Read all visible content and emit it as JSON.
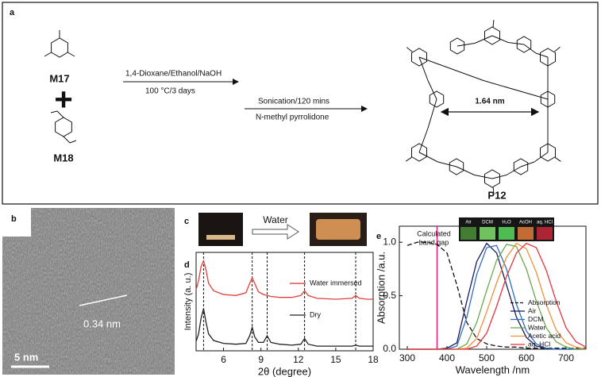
{
  "panel_labels": [
    "a",
    "b",
    "c",
    "d",
    "e"
  ],
  "scheme": {
    "monomer_1": "M17",
    "monomer_2": "M18",
    "plus": "+",
    "step_1": {
      "reagents": "1,4-Dioxane/Ethanol/NaOH",
      "conditions": "100 °C/3 days"
    },
    "step_2": {
      "reagents": "Sonication/120 mins",
      "conditions": "N-methyl pyrrolidone"
    },
    "pore_size": "1.64 nm",
    "product": "P12"
  },
  "tem": {
    "lattice_spacing": "0.34 nm",
    "scale_bar": "5 nm"
  },
  "photos": {
    "treatment": "Water"
  },
  "chart_data": [
    {
      "type": "line",
      "xlabel": "2θ (degree)",
      "ylabel": "Intensity (a. u.)",
      "xlim": [
        3.8,
        18
      ],
      "ylim": [
        0,
        10.5
      ],
      "xticks": [
        6,
        9,
        12,
        15,
        18
      ],
      "reference_lines": [
        4.4,
        8.3,
        9.5,
        12.5,
        16.6
      ],
      "x": [
        3.8,
        4.0,
        4.2,
        4.4,
        4.6,
        4.8,
        5.2,
        6,
        7,
        7.8,
        8.1,
        8.3,
        8.5,
        8.8,
        9.2,
        9.5,
        9.8,
        10.5,
        11.5,
        12.2,
        12.5,
        12.8,
        13.5,
        15,
        16.3,
        16.6,
        16.9,
        17.5,
        18
      ],
      "series": [
        {
          "name": "Water immersed",
          "color": "#e0403c",
          "values": [
            6.5,
            7.5,
            9.0,
            9.6,
            8.6,
            7.2,
            6.4,
            6.0,
            5.9,
            6.2,
            7.2,
            7.8,
            7.2,
            6.3,
            6.0,
            5.9,
            5.8,
            5.7,
            5.7,
            5.9,
            6.4,
            5.9,
            5.6,
            5.5,
            5.6,
            5.9,
            5.6,
            5.5,
            5.5
          ]
        },
        {
          "name": "Dry",
          "color": "#222222",
          "values": [
            1.0,
            1.8,
            3.5,
            4.5,
            3.0,
            1.8,
            1.1,
            0.8,
            0.7,
            0.8,
            1.6,
            2.5,
            1.5,
            0.9,
            0.9,
            1.6,
            0.9,
            0.7,
            0.6,
            0.7,
            1.3,
            0.7,
            0.5,
            0.5,
            0.5,
            0.6,
            0.5,
            0.5,
            0.5
          ]
        }
      ]
    },
    {
      "type": "line",
      "xlabel": "Wavelength /nm",
      "ylabel": "Absorption /a.u.",
      "xlim": [
        280,
        750
      ],
      "ylim": [
        0,
        1.15
      ],
      "xticks": [
        300,
        400,
        500,
        600,
        700
      ],
      "yticks": [
        {
          "value": 0,
          "label": "0.0"
        },
        {
          "value": 0.5,
          "label": "0.5"
        },
        {
          "value": 1,
          "label": "1.0"
        }
      ],
      "band_gap": {
        "value": 375,
        "label": [
          "Calculated",
          "band gap"
        ],
        "color": "#e0207a"
      },
      "inset_labels": [
        "Air",
        "DCM",
        "H₂O",
        "AcOH",
        "aq. HCl"
      ],
      "legend": "lower right",
      "x": [
        300,
        325,
        350,
        375,
        400,
        425,
        450,
        475,
        500,
        525,
        550,
        575,
        600,
        625,
        650,
        675,
        700,
        725,
        750
      ],
      "series": [
        {
          "name": "Absorption",
          "color": "#111111",
          "dash": true,
          "values": [
            0.97,
            1.0,
            1.0,
            0.98,
            0.9,
            0.6,
            0.25,
            0.1,
            0.05,
            0.03,
            0.02,
            0.02,
            0.01,
            0.01,
            0.01,
            0.01,
            0.01,
            0.01,
            0.01
          ]
        },
        {
          "name": "Air",
          "color": "#1a1a5e",
          "values": [
            0,
            0,
            0,
            0,
            0.01,
            0.06,
            0.45,
            0.82,
            0.99,
            0.9,
            0.6,
            0.3,
            0.11,
            0.03,
            0.01,
            0,
            0,
            0,
            0
          ]
        },
        {
          "name": "DCM",
          "color": "#2f6fc0",
          "values": [
            0,
            0,
            0,
            0,
            0,
            0.03,
            0.3,
            0.7,
            0.95,
            0.97,
            0.75,
            0.42,
            0.17,
            0.05,
            0.01,
            0,
            0,
            0,
            0
          ]
        },
        {
          "name": "Water",
          "color": "#6aa84f",
          "values": [
            0,
            0,
            0,
            0,
            0,
            0,
            0.05,
            0.25,
            0.55,
            0.83,
            0.98,
            0.96,
            0.75,
            0.45,
            0.2,
            0.07,
            0.02,
            0,
            0
          ]
        },
        {
          "name": "Acetic acid",
          "color": "#f0913a",
          "values": [
            0,
            0,
            0,
            0,
            0,
            0,
            0.01,
            0.1,
            0.35,
            0.62,
            0.86,
            0.99,
            0.94,
            0.72,
            0.42,
            0.18,
            0.06,
            0.02,
            0
          ]
        },
        {
          "name": "aq. HCl",
          "color": "#e8323c",
          "values": [
            0,
            0,
            0,
            0,
            0,
            0,
            0,
            0.03,
            0.15,
            0.4,
            0.68,
            0.9,
            0.99,
            0.95,
            0.74,
            0.45,
            0.2,
            0.07,
            0.02
          ]
        }
      ]
    }
  ]
}
